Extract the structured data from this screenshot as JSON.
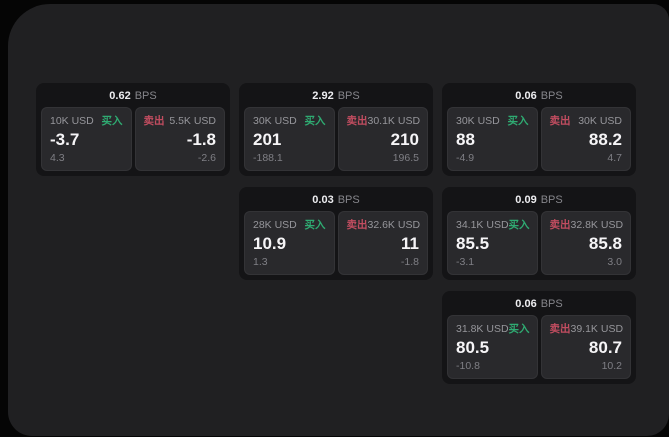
{
  "labels": {
    "bps_suffix": "BPS",
    "buy": "买入",
    "sell": "卖出"
  },
  "colors": {
    "buy": "#2fab72",
    "sell": "#c24d60",
    "surface": "#202022",
    "card": "#141416",
    "panel": "#29292c"
  },
  "cards": [
    {
      "bps": "0.62",
      "buy": {
        "amount": "10K USD",
        "price": "-3.7",
        "delta": "4.3"
      },
      "sell": {
        "amount": "5.5K USD",
        "price": "-1.8",
        "delta": "-2.6"
      }
    },
    {
      "bps": "2.92",
      "buy": {
        "amount": "30K USD",
        "price": "201",
        "delta": "-188.1"
      },
      "sell": {
        "amount": "30.1K USD",
        "price": "210",
        "delta": "196.5"
      }
    },
    {
      "bps": "0.06",
      "buy": {
        "amount": "30K USD",
        "price": "88",
        "delta": "-4.9"
      },
      "sell": {
        "amount": "30K USD",
        "price": "88.2",
        "delta": "4.7"
      }
    },
    {
      "bps": "0.03",
      "buy": {
        "amount": "28K USD",
        "price": "10.9",
        "delta": "1.3"
      },
      "sell": {
        "amount": "32.6K USD",
        "price": "11",
        "delta": "-1.8"
      }
    },
    {
      "bps": "0.09",
      "buy": {
        "amount": "34.1K USD",
        "price": "85.5",
        "delta": "-3.1"
      },
      "sell": {
        "amount": "32.8K USD",
        "price": "85.8",
        "delta": "3.0"
      }
    },
    {
      "bps": "0.06",
      "buy": {
        "amount": "31.8K USD",
        "price": "80.5",
        "delta": "-10.8"
      },
      "sell": {
        "amount": "39.1K USD",
        "price": "80.7",
        "delta": "10.2"
      }
    }
  ]
}
